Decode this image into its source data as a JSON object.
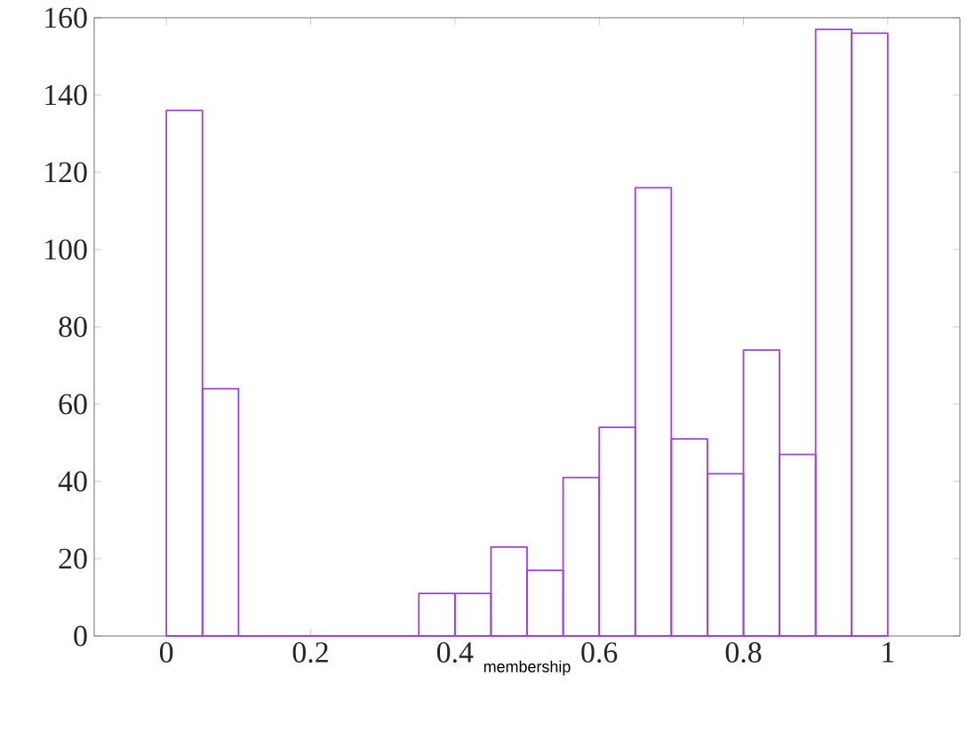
{
  "chart_data": {
    "type": "histogram",
    "xlabel": "membership",
    "color": "#a040e0",
    "bins": [
      0,
      0.05,
      0.1,
      0.15,
      0.2,
      0.25,
      0.3,
      0.35,
      0.4,
      0.45,
      0.5,
      0.55,
      0.6,
      0.65,
      0.7,
      0.75,
      0.8,
      0.85,
      0.9,
      0.95,
      1
    ],
    "values": [
      136,
      64,
      0,
      0,
      0,
      0,
      0,
      11,
      11,
      23,
      17,
      41,
      54,
      116,
      51,
      42,
      74,
      47,
      157,
      156
    ],
    "xlim": [
      -0.1,
      1.1
    ],
    "ylim": [
      0,
      160
    ],
    "xticks": [
      0,
      0.2,
      0.4,
      0.6,
      0.8,
      1
    ],
    "yticks": [
      0,
      20,
      40,
      60,
      80,
      100,
      120,
      140,
      160
    ],
    "grid": false
  }
}
